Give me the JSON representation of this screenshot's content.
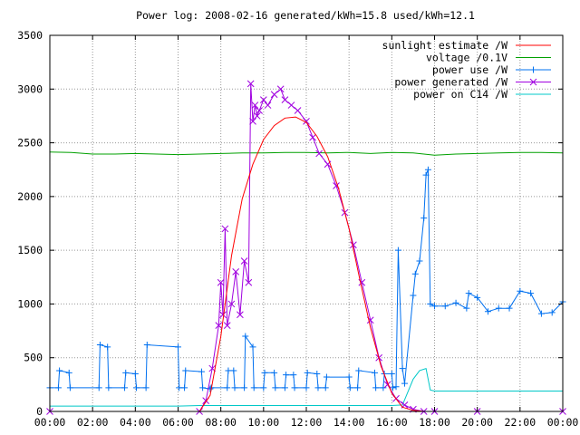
{
  "chart_data": {
    "type": "line",
    "title": "Power log: 2008-02-16 generated/kWh=15.8 used/kWh=12.1",
    "x_unit": "hours since 00:00",
    "x_ticks": [
      "00:00",
      "02:00",
      "04:00",
      "06:00",
      "08:00",
      "10:00",
      "12:00",
      "14:00",
      "16:00",
      "18:00",
      "20:00",
      "22:00",
      "00:00"
    ],
    "y_ticks": [
      "0",
      "500",
      "1000",
      "1500",
      "2000",
      "2500",
      "3000",
      "3500"
    ],
    "xlim": [
      0,
      24
    ],
    "ylim": [
      0,
      3500
    ],
    "grid": true,
    "legend_position": "top-right",
    "series": [
      {
        "name": "sunlight estimate /W",
        "color": "#ff0000",
        "marker": "none",
        "x": [
          7.0,
          7.5,
          8.0,
          8.5,
          9.0,
          9.5,
          10.0,
          10.5,
          11.0,
          11.5,
          12.0,
          12.5,
          13.0,
          13.5,
          14.0,
          14.5,
          15.0,
          15.5,
          16.0,
          16.5,
          17.0,
          17.5
        ],
        "y": [
          0,
          150,
          700,
          1450,
          1980,
          2300,
          2530,
          2660,
          2730,
          2740,
          2690,
          2560,
          2370,
          2080,
          1700,
          1230,
          780,
          420,
          170,
          40,
          10,
          0
        ]
      },
      {
        "name": "voltage /0.1V",
        "color": "#00a000",
        "marker": "none",
        "x": [
          0,
          1,
          2,
          3,
          4,
          5,
          6,
          7,
          8,
          9,
          10,
          11,
          12,
          13,
          14,
          15,
          16,
          17,
          18,
          19,
          20,
          21,
          22,
          23,
          24
        ],
        "y": [
          2415,
          2410,
          2395,
          2395,
          2400,
          2395,
          2390,
          2395,
          2400,
          2405,
          2405,
          2410,
          2410,
          2405,
          2410,
          2400,
          2410,
          2405,
          2385,
          2395,
          2400,
          2405,
          2410,
          2410,
          2405
        ]
      },
      {
        "name": "power use /W",
        "color": "#0070f0",
        "marker": "plus",
        "x": [
          0.0,
          0.4,
          0.45,
          0.9,
          0.95,
          2.3,
          2.35,
          2.7,
          2.75,
          3.5,
          3.55,
          4.0,
          4.05,
          4.5,
          4.55,
          6.0,
          6.05,
          6.3,
          6.35,
          7.1,
          7.15,
          7.5,
          7.55,
          8.3,
          8.35,
          8.6,
          8.65,
          9.1,
          9.15,
          9.5,
          9.55,
          10.0,
          10.05,
          10.5,
          10.55,
          11.0,
          11.05,
          11.4,
          11.45,
          12.0,
          12.05,
          12.5,
          12.55,
          12.9,
          12.95,
          14.0,
          14.05,
          14.4,
          14.45,
          15.2,
          15.25,
          15.6,
          15.65,
          16.0,
          16.05,
          16.2,
          16.3,
          16.5,
          16.6,
          17.0,
          17.1,
          17.3,
          17.5,
          17.6,
          17.7,
          17.8,
          18.0,
          18.5,
          19.0,
          19.5,
          19.6,
          20.0,
          20.5,
          21.0,
          21.5,
          22.0,
          22.5,
          23.0,
          23.5,
          24.0
        ],
        "y": [
          220,
          220,
          380,
          360,
          220,
          220,
          620,
          600,
          220,
          220,
          360,
          350,
          220,
          220,
          620,
          600,
          220,
          220,
          380,
          370,
          220,
          210,
          220,
          220,
          380,
          380,
          220,
          220,
          700,
          600,
          220,
          220,
          360,
          360,
          220,
          220,
          340,
          340,
          220,
          220,
          360,
          350,
          220,
          220,
          320,
          320,
          220,
          220,
          380,
          360,
          220,
          220,
          350,
          350,
          220,
          230,
          1500,
          400,
          260,
          1080,
          1280,
          1400,
          1800,
          2200,
          2250,
          1000,
          980,
          980,
          1010,
          960,
          1100,
          1060,
          930,
          960,
          960,
          1120,
          1100,
          910,
          920,
          1020
        ]
      },
      {
        "name": "power generated /W",
        "color": "#a000e0",
        "marker": "x",
        "x": [
          0,
          7.0,
          7.3,
          7.6,
          7.9,
          8.0,
          8.1,
          8.2,
          8.3,
          8.5,
          8.7,
          8.9,
          9.1,
          9.3,
          9.4,
          9.5,
          9.6,
          9.7,
          9.8,
          10.0,
          10.2,
          10.5,
          10.8,
          11.0,
          11.3,
          11.6,
          12.0,
          12.3,
          12.6,
          13.0,
          13.4,
          13.8,
          14.2,
          14.6,
          15.0,
          15.4,
          15.8,
          16.2,
          16.6,
          17.0,
          17.5,
          18.0,
          20.0,
          24.0
        ],
        "y": [
          0,
          0,
          100,
          400,
          800,
          1200,
          900,
          1700,
          800,
          1000,
          1300,
          900,
          1400,
          1200,
          3050,
          2700,
          2850,
          2750,
          2800,
          2900,
          2850,
          2950,
          3000,
          2900,
          2850,
          2800,
          2700,
          2550,
          2400,
          2300,
          2100,
          1850,
          1550,
          1200,
          850,
          500,
          250,
          120,
          60,
          20,
          0,
          0,
          0,
          0
        ]
      },
      {
        "name": "power on C14 /W",
        "color": "#00c8c8",
        "marker": "none",
        "x": [
          0,
          6.0,
          7.0,
          8.0,
          10.0,
          12.0,
          14.0,
          16.0,
          16.5,
          17.0,
          17.3,
          17.6,
          17.8,
          18.0,
          20.0,
          22.0,
          24.0
        ],
        "y": [
          50,
          50,
          55,
          55,
          55,
          55,
          55,
          55,
          60,
          300,
          380,
          400,
          200,
          190,
          190,
          190,
          190
        ]
      }
    ]
  }
}
